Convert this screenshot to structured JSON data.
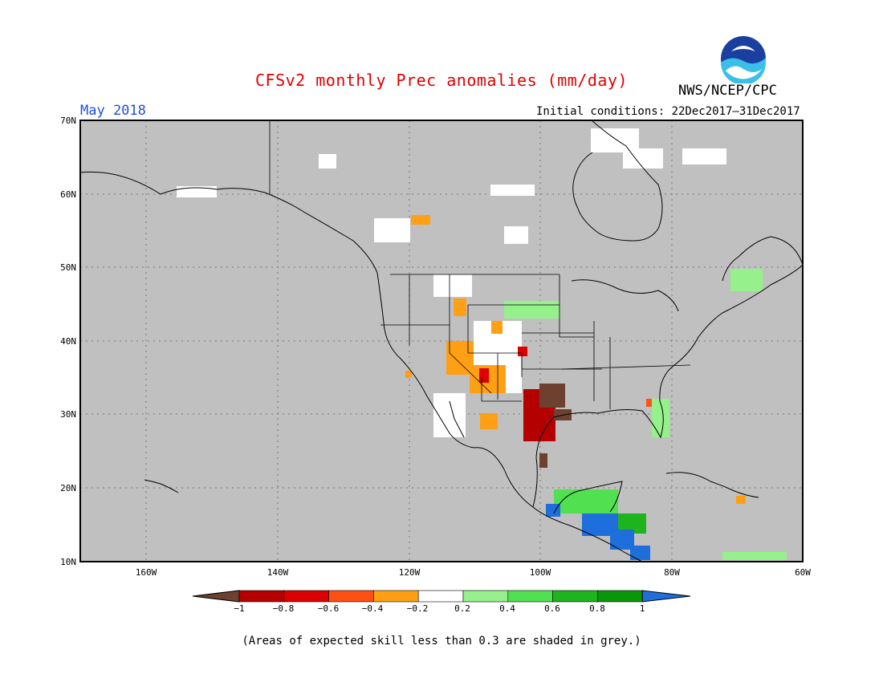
{
  "title": "CFSv2 monthly Prec anomalies (mm/day)",
  "org": "NWS/NCEP/CPC",
  "logo_text": "NOAA",
  "month": "May 2018",
  "initial_conditions": "Initial conditions: 22Dec2017–31Dec2017",
  "footnote": "(Areas of expected skill less than 0.3 are shaded in grey.)",
  "map": {
    "lon_range": [
      -172,
      -60
    ],
    "lat_range": [
      10,
      70
    ],
    "lon_ticks": [
      "160W",
      "140W",
      "120W",
      "100W",
      "80W",
      "60W"
    ],
    "lat_ticks": [
      "70N",
      "60N",
      "50N",
      "40N",
      "30N",
      "20N",
      "10N"
    ],
    "background": "#c0c0c0",
    "grid": "dotted"
  },
  "colorbar": {
    "ticks": [
      "−1",
      "−0.8",
      "−0.6",
      "−0.4",
      "−0.2",
      "0.2",
      "0.4",
      "0.6",
      "0.8",
      "1"
    ],
    "colors": [
      "#6e4030",
      "#b40000",
      "#dc0000",
      "#ff5014",
      "#ffa014",
      "#ffffff",
      "#96f08c",
      "#50e050",
      "#1eb41e",
      "#0a960a",
      "#1e6edc"
    ]
  }
}
